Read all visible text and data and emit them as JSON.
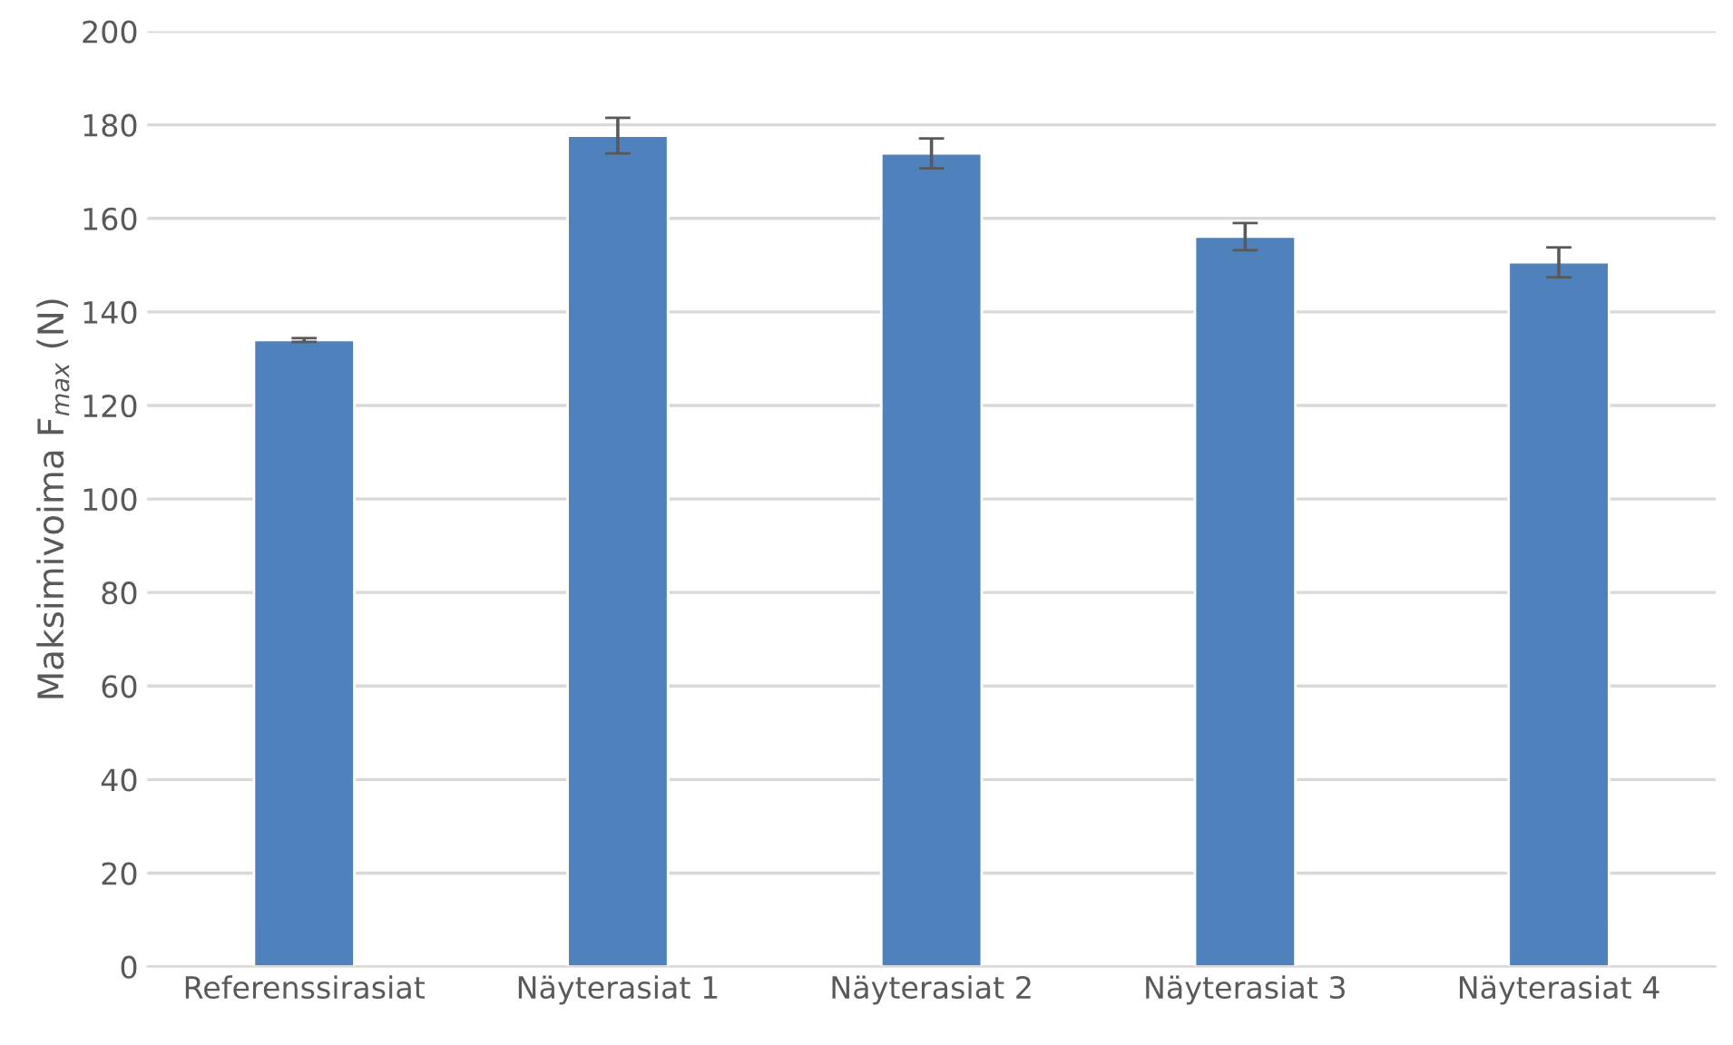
{
  "chart_data": {
    "type": "bar",
    "ylabel": "Maksimivoima F$_{max}$ (N)",
    "categories": [
      "Referenssirasiat",
      "Näyterasiat 1",
      "Näyterasiat 2",
      "Näyterasiat 3",
      "Näyterasiat 4"
    ],
    "values": [
      134,
      177.7,
      173.9,
      156.1,
      150.6
    ],
    "errors": [
      0.4,
      3.8,
      3.2,
      2.9,
      3.2
    ],
    "color": "#4f81bd",
    "ylim": [
      0,
      200
    ],
    "yticks": [
      0,
      20,
      40,
      60,
      80,
      100,
      120,
      140,
      160,
      180,
      200
    ],
    "grid": "y"
  }
}
